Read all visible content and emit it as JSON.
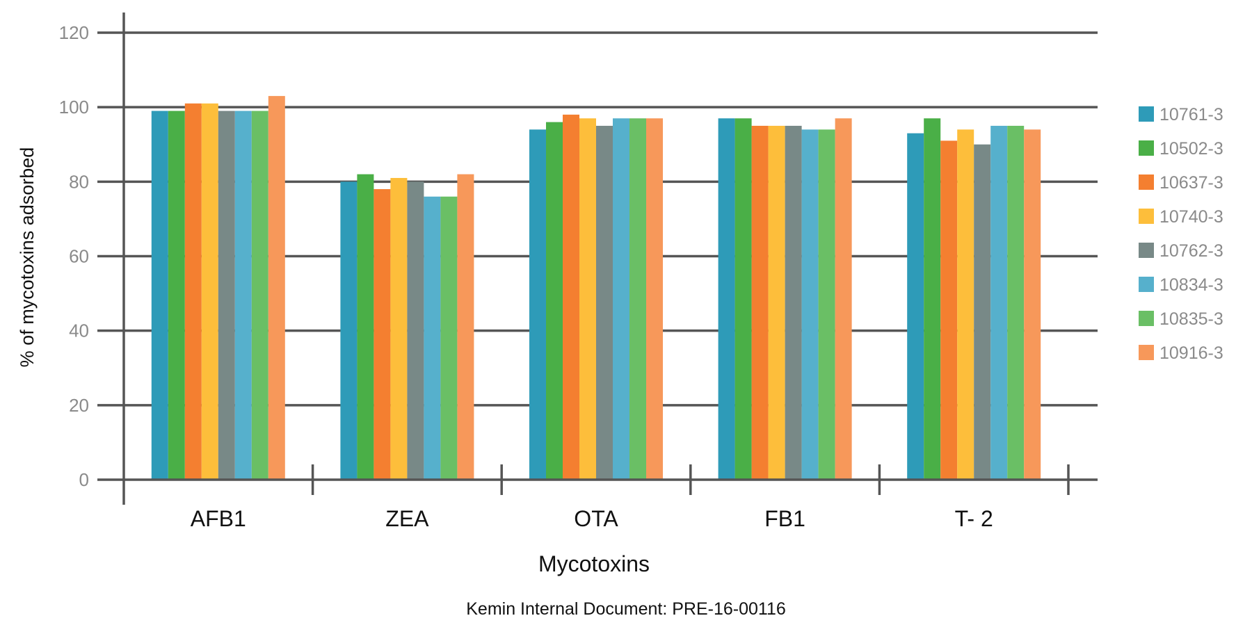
{
  "chart_data": {
    "type": "bar",
    "title": "",
    "xlabel": "Mycotoxins",
    "ylabel": "% of mycotoxins adsorbed",
    "ylim": [
      0,
      120
    ],
    "yticks": [
      0,
      20,
      40,
      60,
      80,
      100,
      120
    ],
    "grid": true,
    "legend_position": "right",
    "categories": [
      "AFB1",
      "ZEA",
      "OTA",
      "FB1",
      "T- 2"
    ],
    "series": [
      {
        "name": "10761-3",
        "color": "#2e9bb8",
        "values": [
          99,
          80,
          94,
          97,
          93
        ]
      },
      {
        "name": "10502-3",
        "color": "#4aaf47",
        "values": [
          99,
          82,
          96,
          97,
          97
        ]
      },
      {
        "name": "10637-3",
        "color": "#f47f30",
        "values": [
          101,
          78,
          98,
          95,
          91
        ]
      },
      {
        "name": "10740-3",
        "color": "#fdbe3b",
        "values": [
          101,
          81,
          97,
          95,
          94
        ]
      },
      {
        "name": "10762-3",
        "color": "#788987",
        "values": [
          99,
          80,
          95,
          95,
          90
        ]
      },
      {
        "name": "10834-3",
        "color": "#56b0cc",
        "values": [
          99,
          76,
          97,
          94,
          95
        ]
      },
      {
        "name": "10835-3",
        "color": "#6abf65",
        "values": [
          99,
          76,
          97,
          94,
          95
        ]
      },
      {
        "name": "10916-3",
        "color": "#f7985a",
        "values": [
          103,
          82,
          97,
          97,
          94
        ]
      }
    ]
  },
  "footer": {
    "text": "Kemin Internal Document: PRE-16-00116"
  }
}
